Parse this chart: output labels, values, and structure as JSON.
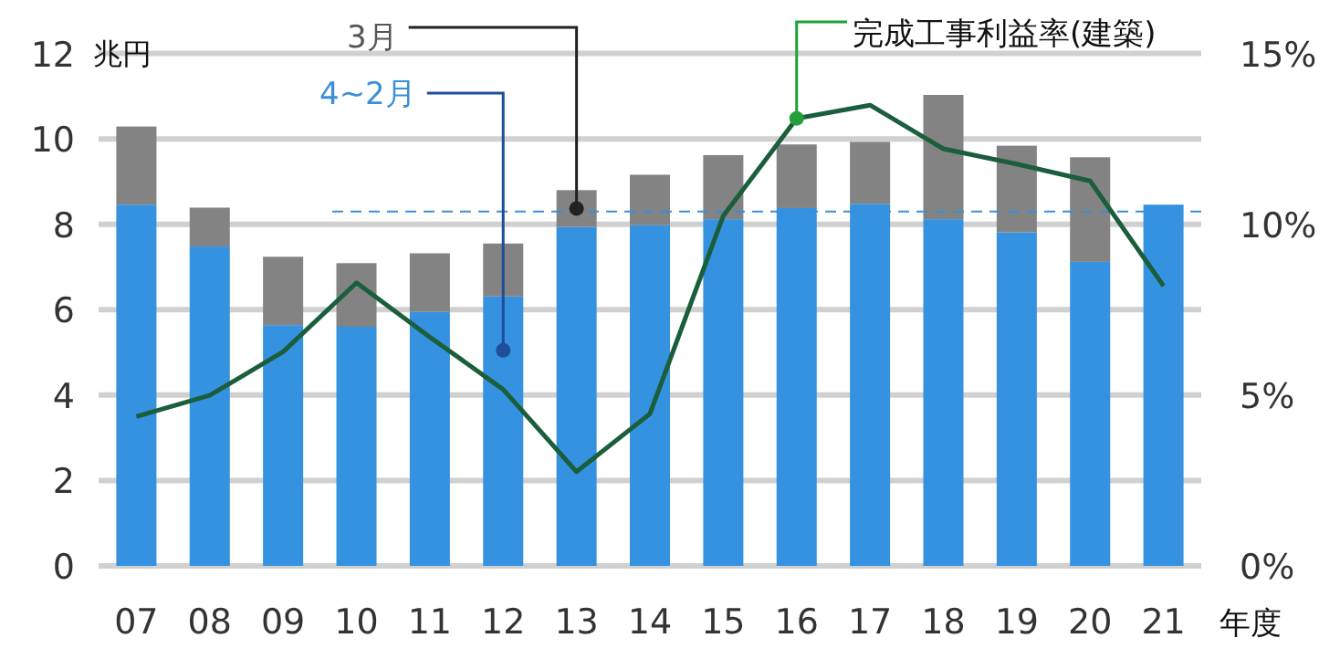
{
  "chart_data": {
    "type": "bar",
    "stacked": true,
    "categories": [
      "07",
      "08",
      "09",
      "10",
      "11",
      "12",
      "13",
      "14",
      "15",
      "16",
      "17",
      "18",
      "19",
      "20",
      "21"
    ],
    "series": [
      {
        "name": "4~2月",
        "color": "#3592e0",
        "values": [
          8.46,
          7.48,
          5.64,
          5.6,
          5.95,
          6.31,
          7.94,
          7.98,
          8.12,
          8.38,
          8.48,
          8.12,
          7.81,
          7.12,
          8.46
        ]
      },
      {
        "name": "3月",
        "color": "#838383",
        "values": [
          1.83,
          0.91,
          1.6,
          1.49,
          1.37,
          1.24,
          0.86,
          1.18,
          1.5,
          1.49,
          1.45,
          2.91,
          2.03,
          2.45,
          null
        ]
      },
      {
        "name": "完成工事利益率(建築)",
        "type": "line",
        "axis": "y2",
        "color": "#1b5e3b",
        "values": [
          4.37,
          4.99,
          6.27,
          8.29,
          6.7,
          5.17,
          2.76,
          4.45,
          10.25,
          13.1,
          13.49,
          12.21,
          11.76,
          11.27,
          8.2
        ]
      }
    ],
    "ylabel": "兆円",
    "xlabel": "年度",
    "ylim": [
      0,
      12
    ],
    "yticks": [
      0,
      2,
      4,
      6,
      8,
      10,
      12
    ],
    "y2lim": [
      0,
      15
    ],
    "y2ticks": [
      {
        "value": 0,
        "label": "0%"
      },
      {
        "value": 5,
        "label": "5%"
      },
      {
        "value": 10,
        "label": "10%"
      },
      {
        "value": 15,
        "label": "15%"
      }
    ],
    "grid": "y",
    "ref_lines": [
      {
        "axis": "y",
        "value": 8.3,
        "line_style": "dashed",
        "color": "#3a8fd8"
      }
    ]
  }
}
